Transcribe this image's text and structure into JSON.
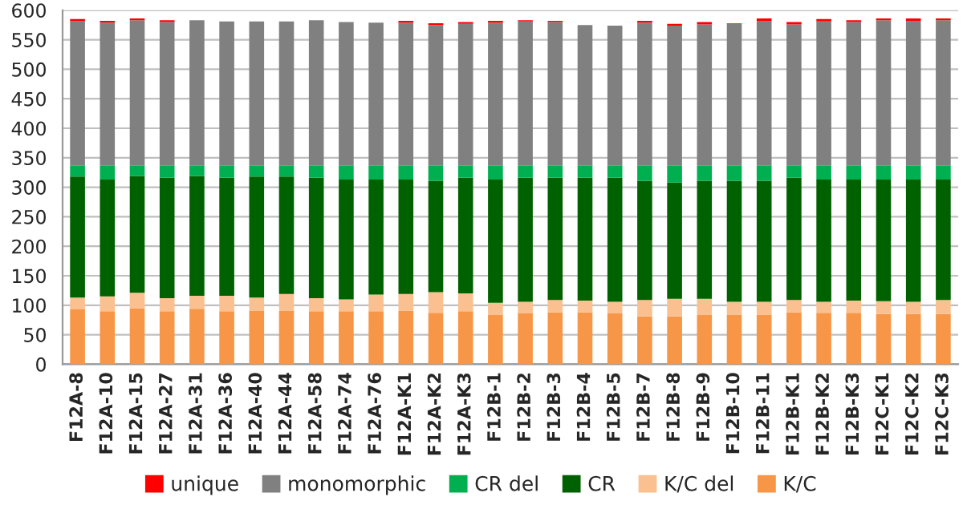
{
  "chart_data": {
    "type": "bar",
    "stacked": true,
    "categories": [
      "F12A-8",
      "F12A-10",
      "F12A-15",
      "F12A-27",
      "F12A-31",
      "F12A-36",
      "F12A-40",
      "F12A-44",
      "F12A-58",
      "F12A-74",
      "F12A-76",
      "F12A-K1",
      "F12A-K2",
      "F12A-K3",
      "F12B-1",
      "F12B-2",
      "F12B-3",
      "F12B-4",
      "F12B-5",
      "F12B-7",
      "F12B-8",
      "F12B-9",
      "F12B-10",
      "F12B-11",
      "F12B-K1",
      "F12B-K2",
      "F12B-K3",
      "F12C-K1",
      "F12C-K2",
      "F12C-K3"
    ],
    "series": [
      {
        "name": "K/C",
        "color": "#f79646",
        "values": [
          93,
          90,
          95,
          90,
          94,
          90,
          91,
          91,
          90,
          90,
          90,
          91,
          87,
          90,
          84,
          86,
          88,
          88,
          86,
          81,
          81,
          84,
          84,
          84,
          88,
          87,
          87,
          85,
          85,
          85
        ]
      },
      {
        "name": "K/C del",
        "color": "#fac090",
        "values": [
          20,
          25,
          26,
          22,
          22,
          26,
          22,
          28,
          22,
          20,
          28,
          28,
          35,
          30,
          20,
          20,
          21,
          20,
          20,
          28,
          30,
          27,
          22,
          22,
          21,
          19,
          21,
          22,
          21,
          24
        ]
      },
      {
        "name": "CR",
        "color": "#006100",
        "values": [
          205,
          198,
          198,
          204,
          203,
          200,
          205,
          199,
          204,
          203,
          195,
          194,
          189,
          196,
          209,
          210,
          207,
          208,
          210,
          202,
          197,
          200,
          205,
          205,
          207,
          207,
          205,
          206,
          207,
          204
        ]
      },
      {
        "name": "CR del",
        "color": "#00b050",
        "values": [
          19,
          24,
          18,
          21,
          18,
          21,
          19,
          19,
          21,
          24,
          24,
          24,
          26,
          21,
          24,
          21,
          21,
          21,
          21,
          26,
          29,
          26,
          26,
          26,
          21,
          24,
          24,
          24,
          24,
          24
        ]
      },
      {
        "name": "monomorphic",
        "color": "#808080",
        "values": [
          245,
          242,
          246,
          243,
          246,
          244,
          244,
          244,
          246,
          243,
          242,
          242,
          238,
          240,
          242,
          244,
          243,
          238,
          237,
          242,
          237,
          239,
          240,
          245,
          239,
          244,
          243,
          246,
          245,
          246
        ]
      },
      {
        "name": "unique",
        "color": "#ff0000",
        "values": [
          3,
          3,
          3,
          3,
          0,
          0,
          0,
          0,
          0,
          0,
          0,
          3,
          3,
          3,
          3,
          2,
          2,
          0,
          0,
          3,
          3,
          4,
          1,
          4,
          4,
          4,
          3,
          3,
          4,
          3
        ]
      }
    ],
    "ylim": [
      0,
      600
    ],
    "yticks": [
      0,
      50,
      100,
      150,
      200,
      250,
      300,
      350,
      400,
      450,
      500,
      550,
      600
    ],
    "grid": "y",
    "legend": "bottom"
  }
}
